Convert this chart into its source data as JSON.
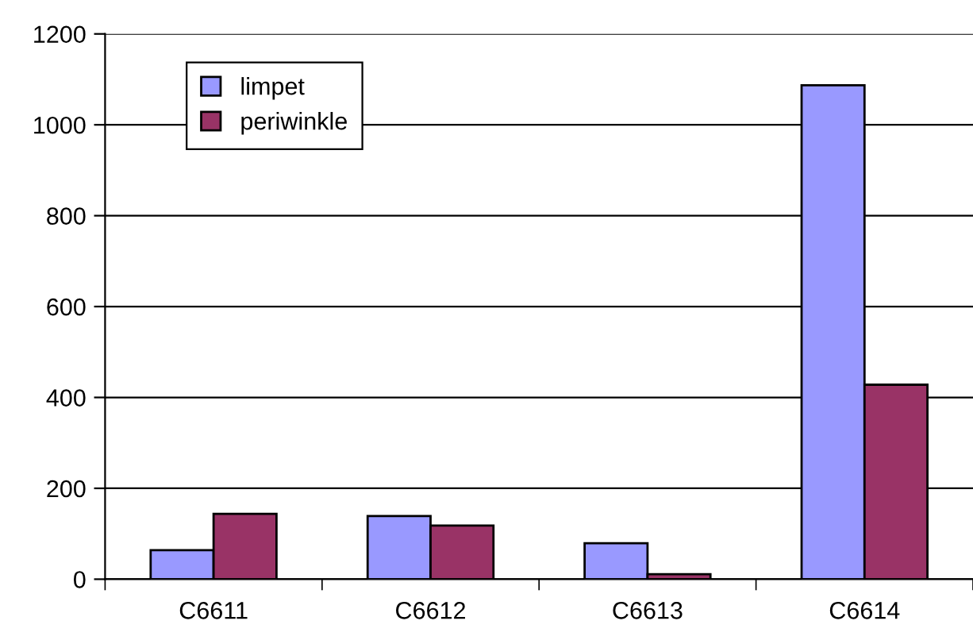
{
  "chart_data": {
    "type": "bar",
    "categories": [
      "C6611",
      "C6612",
      "C6613",
      "C6614"
    ],
    "series": [
      {
        "name": "limpet",
        "color": "#9999ff",
        "values": [
          64,
          139,
          79,
          1087
        ]
      },
      {
        "name": "periwinkle",
        "color": "#993366",
        "values": [
          144,
          118,
          11,
          428
        ]
      }
    ],
    "ylim": [
      0,
      1200
    ],
    "yticks": [
      0,
      200,
      400,
      600,
      800,
      1000,
      1200
    ],
    "grid": "y",
    "legend": "top left"
  }
}
